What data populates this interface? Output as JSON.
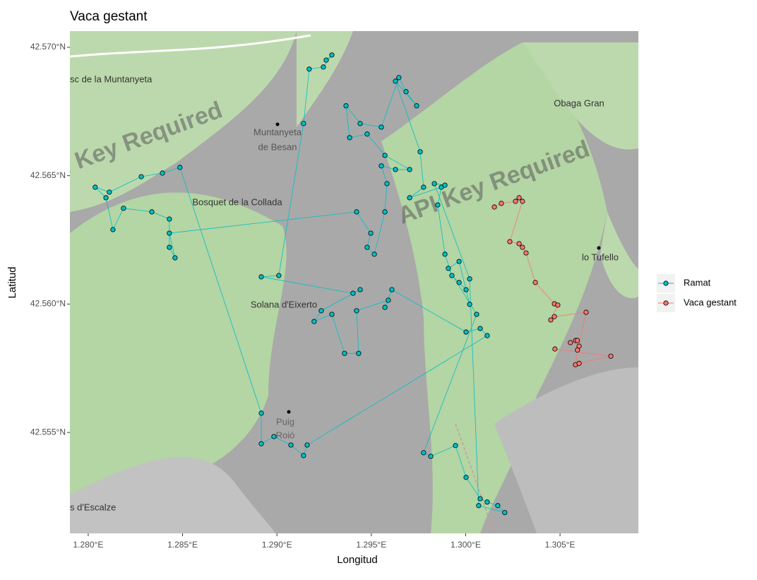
{
  "chart_data": {
    "type": "line",
    "markers": true,
    "title": "Vaca gestant",
    "x_label": "Longitud",
    "y_label": "Latitud",
    "legend": "right",
    "xlim": [
      1.27903,
      1.30915
    ],
    "ylim": [
      42.55107,
      42.57063
    ],
    "xticks": [
      {
        "value": 1.28,
        "label": "1.280°E"
      },
      {
        "value": 1.285,
        "label": "1.285°E"
      },
      {
        "value": 1.29,
        "label": "1.290°E"
      },
      {
        "value": 1.295,
        "label": "1.295°E"
      },
      {
        "value": 1.3,
        "label": "1.300°E"
      },
      {
        "value": 1.305,
        "label": "1.305°E"
      }
    ],
    "yticks": [
      {
        "value": 42.555,
        "label": "42.555°N"
      },
      {
        "value": 42.56,
        "label": "42.560°N"
      },
      {
        "value": 42.565,
        "label": "42.565°N"
      },
      {
        "value": 42.57,
        "label": "42.570°N"
      }
    ],
    "map_labels": [
      "sc de la Muntanyeta",
      "Muntanyeta",
      "de Besan",
      "Bosquet de la Collada",
      "Solana d'Eixerto",
      "Obaga Gran",
      "lo Tufello",
      "Puig",
      "Roió",
      "s d'Escalze",
      "API Key Required",
      "API Key Required"
    ],
    "series": [
      {
        "name": "Ramat",
        "color": "#00bfc4",
        "x": [
          1.29261,
          1.29291,
          1.29246,
          1.29171,
          1.29141,
          1.2901,
          1.28917,
          1.29403,
          1.29441,
          1.29235,
          1.29197,
          1.29291,
          1.29358,
          1.29433,
          1.29422,
          1.2959,
          1.29572,
          1.29609,
          1.30002,
          1.30077,
          1.30114,
          1.2916,
          1.29141,
          1.29074,
          1.28984,
          1.28917,
          1.28917,
          1.28486,
          1.28393,
          1.28281,
          1.28112,
          1.28037,
          1.28094,
          1.28131,
          1.28187,
          1.28337,
          1.2843,
          1.2843,
          1.2846,
          1.2843,
          1.29422,
          1.29497,
          1.29478,
          1.29516,
          1.29572,
          1.29583,
          1.29553,
          1.29628,
          1.29703,
          1.29572,
          1.29478,
          1.29385,
          1.29366,
          1.29441,
          1.29553,
          1.29646,
          1.29684,
          1.2974,
          1.29628,
          1.29759,
          1.29777,
          1.29703,
          1.29871,
          1.29852,
          1.2989,
          1.29927,
          1.29965,
          1.30002,
          1.30021,
          1.29965,
          1.29908,
          1.30058,
          1.29777,
          1.29815,
          1.29946,
          1.30002,
          1.30077,
          1.30114,
          1.3017,
          1.30207,
          1.30069,
          1.30021,
          1.29834,
          1.2989
        ],
        "values": [
          42.5695,
          42.5697,
          42.56923,
          42.56915,
          42.56703,
          42.56111,
          42.56106,
          42.56042,
          42.56056,
          42.55974,
          42.55932,
          42.5596,
          42.55808,
          42.55808,
          42.55974,
          42.56015,
          42.55987,
          42.56056,
          42.55891,
          42.55905,
          42.55877,
          42.55451,
          42.5541,
          42.55451,
          42.55484,
          42.55456,
          42.55575,
          42.56532,
          42.5651,
          42.56496,
          42.56436,
          42.56455,
          42.56414,
          42.5629,
          42.56373,
          42.56359,
          42.56331,
          42.56221,
          42.5618,
          42.56276,
          42.56359,
          42.56276,
          42.56221,
          42.56194,
          42.56359,
          42.56469,
          42.56538,
          42.56524,
          42.56524,
          42.56579,
          42.56662,
          42.56648,
          42.56772,
          42.56703,
          42.56689,
          42.56882,
          42.56827,
          42.56772,
          42.56868,
          42.56593,
          42.56455,
          42.56414,
          42.56455,
          42.56386,
          42.56194,
          42.56111,
          42.56084,
          42.56056,
          42.55999,
          42.56166,
          42.56139,
          42.5596,
          42.55421,
          42.55407,
          42.55449,
          42.55325,
          42.55242,
          42.55229,
          42.55215,
          42.55188,
          42.55215,
          42.56098,
          42.56469,
          42.56463
        ]
      },
      {
        "name": "Vaca gestant",
        "color": "#f8766d",
        "x": [
          1.30152,
          1.30189,
          1.30264,
          1.30283,
          1.30301,
          1.30234,
          1.30283,
          1.30301,
          1.3032,
          1.30369,
          1.3047,
          1.30488,
          1.30451,
          1.3047,
          1.30638,
          1.30601,
          1.30582,
          1.30555,
          1.30592,
          1.30592,
          1.30582,
          1.30601,
          1.30769,
          1.30473
        ],
        "values": [
          42.56378,
          42.56392,
          42.564,
          42.56414,
          42.564,
          42.56243,
          42.56235,
          42.56221,
          42.56199,
          42.56084,
          42.56001,
          42.55996,
          42.55938,
          42.55951,
          42.55968,
          42.55836,
          42.55858,
          42.5585,
          42.55858,
          42.55821,
          42.55764,
          42.55769,
          42.55797,
          42.55825
        ]
      }
    ]
  }
}
